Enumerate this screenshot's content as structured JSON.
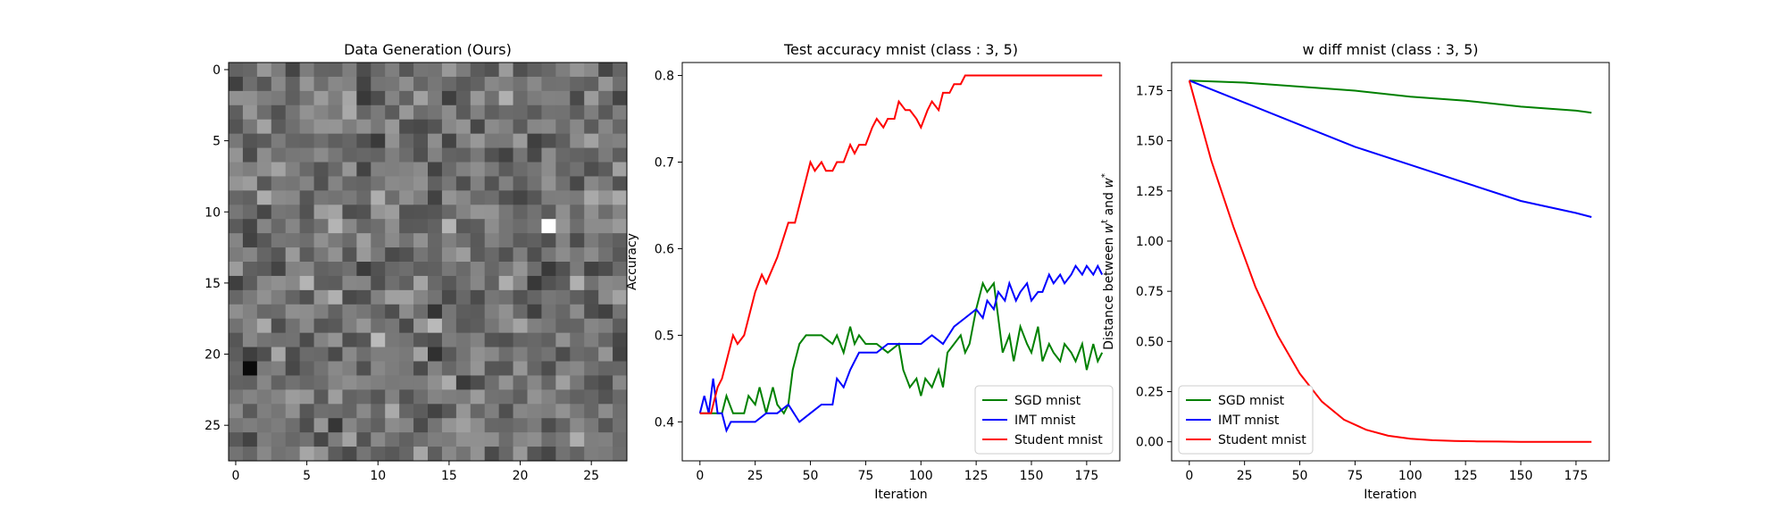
{
  "chart_data": [
    {
      "type": "heatmap",
      "title": "Data Generation (Ours)",
      "xlabel": "",
      "ylabel": "",
      "xlim": [
        -0.5,
        27.5
      ],
      "ylim": [
        27.5,
        -0.5
      ],
      "xticks": [
        0,
        5,
        10,
        15,
        20,
        25
      ],
      "yticks": [
        0,
        5,
        10,
        15,
        20,
        25
      ],
      "colormap": "gray",
      "rows": 28,
      "cols": 28,
      "notable_cells": [
        {
          "row": 11,
          "col": 22,
          "value": "white"
        },
        {
          "row": 21,
          "col": 1,
          "value": "black"
        }
      ]
    },
    {
      "type": "line",
      "title": "Test accuracy mnist (class : 3, 5)",
      "xlabel": "Iteration",
      "ylabel": "Accuracy",
      "xlim": [
        -8,
        190
      ],
      "ylim": [
        0.355,
        0.815
      ],
      "xticks": [
        0,
        25,
        50,
        75,
        100,
        125,
        150,
        175
      ],
      "yticks": [
        0.4,
        0.5,
        0.6,
        0.7,
        0.8
      ],
      "legend_position": "lower-right",
      "series": [
        {
          "name": "SGD mnist",
          "color": "#008000",
          "x": [
            0,
            10,
            12,
            15,
            20,
            22,
            25,
            27,
            30,
            33,
            35,
            38,
            40,
            42,
            45,
            48,
            50,
            55,
            60,
            62,
            65,
            68,
            70,
            72,
            75,
            80,
            85,
            90,
            92,
            95,
            98,
            100,
            102,
            105,
            108,
            110,
            112,
            115,
            118,
            120,
            122,
            125,
            128,
            130,
            133,
            135,
            137,
            140,
            142,
            145,
            148,
            150,
            153,
            155,
            158,
            160,
            163,
            165,
            168,
            170,
            173,
            175,
            178,
            180,
            182
          ],
          "values": [
            0.41,
            0.41,
            0.43,
            0.41,
            0.41,
            0.43,
            0.42,
            0.44,
            0.41,
            0.44,
            0.42,
            0.41,
            0.42,
            0.46,
            0.49,
            0.5,
            0.5,
            0.5,
            0.49,
            0.5,
            0.48,
            0.51,
            0.49,
            0.5,
            0.49,
            0.49,
            0.48,
            0.49,
            0.46,
            0.44,
            0.45,
            0.43,
            0.45,
            0.44,
            0.46,
            0.44,
            0.48,
            0.49,
            0.5,
            0.48,
            0.49,
            0.53,
            0.56,
            0.55,
            0.56,
            0.52,
            0.48,
            0.5,
            0.47,
            0.51,
            0.49,
            0.48,
            0.51,
            0.47,
            0.49,
            0.48,
            0.47,
            0.49,
            0.48,
            0.47,
            0.49,
            0.46,
            0.49,
            0.47,
            0.48
          ]
        },
        {
          "name": "IMT mnist",
          "color": "#0000ff",
          "x": [
            0,
            2,
            4,
            6,
            8,
            10,
            12,
            14,
            16,
            18,
            20,
            25,
            30,
            35,
            40,
            45,
            50,
            55,
            60,
            62,
            65,
            68,
            70,
            72,
            75,
            80,
            85,
            90,
            95,
            100,
            105,
            110,
            115,
            120,
            125,
            128,
            130,
            133,
            135,
            138,
            140,
            143,
            145,
            148,
            150,
            153,
            155,
            158,
            160,
            163,
            165,
            168,
            170,
            173,
            175,
            178,
            180,
            182
          ],
          "values": [
            0.41,
            0.43,
            0.41,
            0.45,
            0.41,
            0.41,
            0.39,
            0.4,
            0.4,
            0.4,
            0.4,
            0.4,
            0.41,
            0.41,
            0.42,
            0.4,
            0.41,
            0.42,
            0.42,
            0.45,
            0.44,
            0.46,
            0.47,
            0.48,
            0.48,
            0.48,
            0.49,
            0.49,
            0.49,
            0.49,
            0.5,
            0.49,
            0.51,
            0.52,
            0.53,
            0.52,
            0.54,
            0.53,
            0.55,
            0.54,
            0.56,
            0.54,
            0.55,
            0.56,
            0.54,
            0.55,
            0.55,
            0.57,
            0.56,
            0.57,
            0.56,
            0.57,
            0.58,
            0.57,
            0.58,
            0.57,
            0.58,
            0.57
          ]
        },
        {
          "name": "Student mnist",
          "color": "#ff0000",
          "x": [
            0,
            5,
            8,
            10,
            12,
            15,
            17,
            20,
            25,
            28,
            30,
            35,
            40,
            43,
            46,
            48,
            50,
            52,
            55,
            57,
            60,
            62,
            65,
            68,
            70,
            72,
            75,
            78,
            80,
            83,
            85,
            88,
            90,
            93,
            95,
            98,
            100,
            103,
            105,
            108,
            110,
            113,
            115,
            118,
            120,
            125,
            150,
            182
          ],
          "values": [
            0.41,
            0.41,
            0.44,
            0.45,
            0.47,
            0.5,
            0.49,
            0.5,
            0.55,
            0.57,
            0.56,
            0.59,
            0.63,
            0.63,
            0.66,
            0.68,
            0.7,
            0.69,
            0.7,
            0.69,
            0.69,
            0.7,
            0.7,
            0.72,
            0.71,
            0.72,
            0.72,
            0.74,
            0.75,
            0.74,
            0.75,
            0.75,
            0.77,
            0.76,
            0.76,
            0.75,
            0.74,
            0.76,
            0.77,
            0.76,
            0.78,
            0.78,
            0.79,
            0.79,
            0.8,
            0.8,
            0.8,
            0.8
          ]
        }
      ]
    },
    {
      "type": "line",
      "title": "w diff mnist (class : 3, 5)",
      "xlabel": "Iteration",
      "ylabel": "Distance between w^t and w^*",
      "xlim": [
        -8,
        190
      ],
      "ylim": [
        -0.095,
        1.89
      ],
      "xticks": [
        0,
        25,
        50,
        75,
        100,
        125,
        150,
        175
      ],
      "yticks": [
        0.0,
        0.25,
        0.5,
        0.75,
        1.0,
        1.25,
        1.5,
        1.75
      ],
      "legend_position": "lower-left",
      "series": [
        {
          "name": "SGD mnist",
          "color": "#008000",
          "x": [
            0,
            25,
            50,
            75,
            100,
            125,
            150,
            175,
            182
          ],
          "values": [
            1.8,
            1.79,
            1.77,
            1.75,
            1.72,
            1.7,
            1.67,
            1.65,
            1.64
          ]
        },
        {
          "name": "IMT mnist",
          "color": "#0000ff",
          "x": [
            0,
            25,
            50,
            75,
            100,
            125,
            150,
            175,
            182
          ],
          "values": [
            1.8,
            1.69,
            1.58,
            1.47,
            1.38,
            1.29,
            1.2,
            1.14,
            1.12
          ]
        },
        {
          "name": "Student mnist",
          "color": "#ff0000",
          "x": [
            0,
            10,
            20,
            30,
            40,
            50,
            60,
            70,
            80,
            90,
            100,
            110,
            120,
            130,
            140,
            150,
            160,
            170,
            182
          ],
          "values": [
            1.8,
            1.4,
            1.07,
            0.77,
            0.53,
            0.34,
            0.2,
            0.11,
            0.06,
            0.03,
            0.015,
            0.008,
            0.004,
            0.002,
            0.001,
            0.0,
            0.0,
            0.0,
            0.0
          ]
        }
      ]
    }
  ]
}
